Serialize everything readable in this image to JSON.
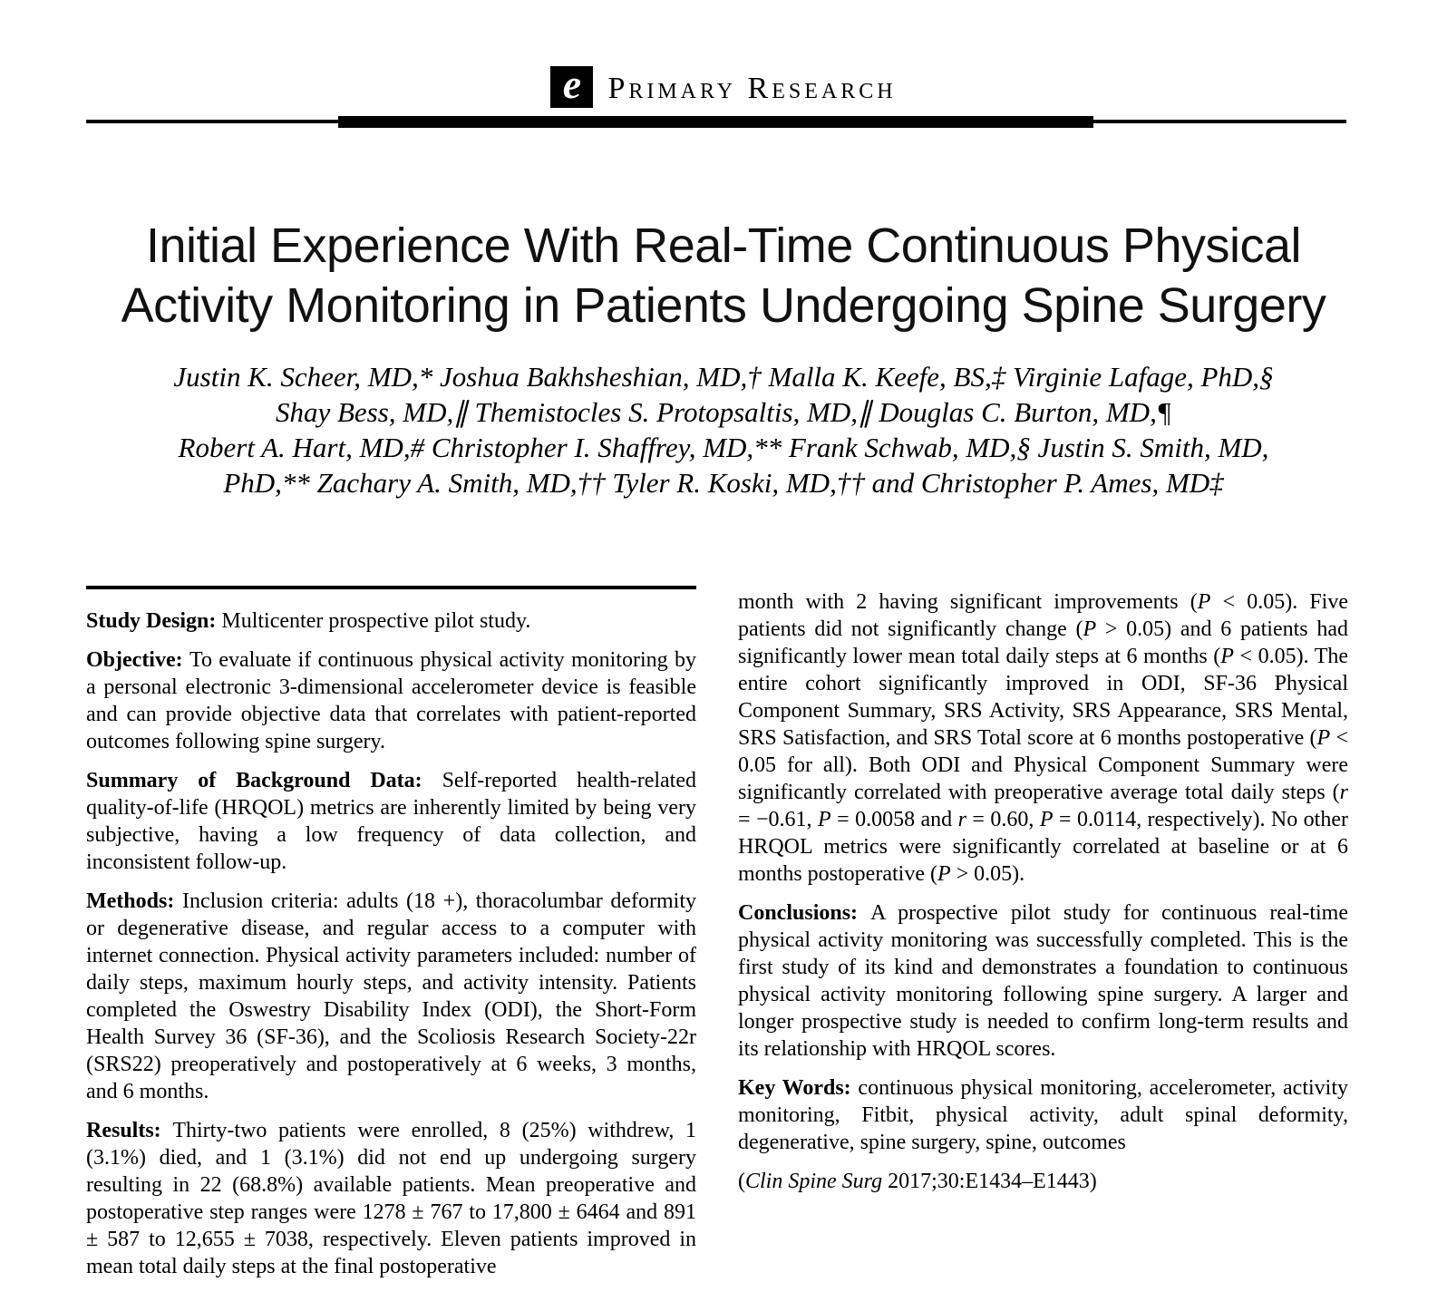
{
  "header": {
    "logo_letter": "e",
    "category": "Primary Research"
  },
  "title": {
    "line1": "Initial Experience With Real-Time Continuous Physical",
    "line2": "Activity Monitoring in Patients Undergoing Spine Surgery"
  },
  "authors": {
    "line1": "Justin K. Scheer, MD,* Joshua Bakhsheshian, MD,† Malla K. Keefe, BS,‡ Virginie Lafage, PhD,§",
    "line2": "Shay Bess, MD,∥ Themistocles S. Protopsaltis, MD,∥ Douglas C. Burton, MD,¶",
    "line3": "Robert A. Hart, MD,# Christopher I. Shaffrey, MD,** Frank Schwab, MD,§ Justin S. Smith, MD,",
    "line4": "PhD,** Zachary A. Smith, MD,†† Tyler R. Koski, MD,†† and Christopher P. Ames, MD‡"
  },
  "abstract": {
    "left_column": [
      {
        "label": "Study Design:",
        "text": "Multicenter prospective pilot study."
      },
      {
        "label": "Objective:",
        "text": "To evaluate if continuous physical activity monitoring by a personal electronic 3-dimensional accelerometer device is feasible and can provide objective data that correlates with patient-reported outcomes following spine surgery."
      },
      {
        "label": "Summary of Background Data:",
        "text": "Self-reported health-related quality-of-life (HRQOL) metrics are inherently limited by being very subjective, having a low frequency of data collection, and inconsistent follow-up."
      },
      {
        "label": "Methods:",
        "text": "Inclusion criteria: adults (18 +), thoracolumbar deformity or degenerative disease, and regular access to a computer with internet connection. Physical activity parameters included: number of daily steps, maximum hourly steps, and activity intensity. Patients completed the Oswestry Disability Index (ODI), the Short-Form Health Survey 36 (SF-36), and the Scoliosis Research Society-22r (SRS22) preoperatively and postoperatively at 6 weeks, 3 months, and 6 months."
      },
      {
        "label": "Results:",
        "text": "Thirty-two patients were enrolled, 8 (25%) withdrew, 1 (3.1%) died, and 1 (3.1%) did not end up undergoing surgery resulting in 22 (68.8%) available patients. Mean preoperative and postoperative step ranges were 1278 ± 767 to 17,800 ± 6464 and 891 ± 587 to 12,655 ± 7038, respectively. Eleven patients improved in mean total daily steps at the final postoperative"
      }
    ],
    "right_column": [
      {
        "label": "",
        "text": "month with 2 having significant improvements (*P* < 0.05). Five patients did not significantly change (*P* > 0.05) and 6 patients had significantly lower mean total daily steps at 6 months (*P* < 0.05). The entire cohort significantly improved in ODI, SF-36 Physical Component Summary, SRS Activity, SRS Appearance, SRS Mental, SRS Satisfaction, and SRS Total score at 6 months postoperative (*P* < 0.05 for all). Both ODI and Physical Component Summary were significantly correlated with preoperative average total daily steps (*r* = −0.61, *P* = 0.0058 and *r* = 0.60, *P* = 0.0114, respectively). No other HRQOL metrics were significantly correlated at baseline or at 6 months postoperative (*P* > 0.05)."
      },
      {
        "label": "Conclusions:",
        "text": "A prospective pilot study for continuous real-time physical activity monitoring was successfully completed. This is the first study of its kind and demonstrates a foundation to continuous physical activity monitoring following spine surgery. A larger and longer prospective study is needed to confirm long-term results and its relationship with HRQOL scores."
      },
      {
        "label": "Key Words:",
        "text": "continuous physical monitoring, accelerometer, activity monitoring, Fitbit, physical activity, adult spinal deformity, degenerative, spine surgery, spine, outcomes"
      },
      {
        "label": "",
        "text": "(*Clin Spine Surg* 2017;30:E1434–E1443)"
      }
    ]
  }
}
